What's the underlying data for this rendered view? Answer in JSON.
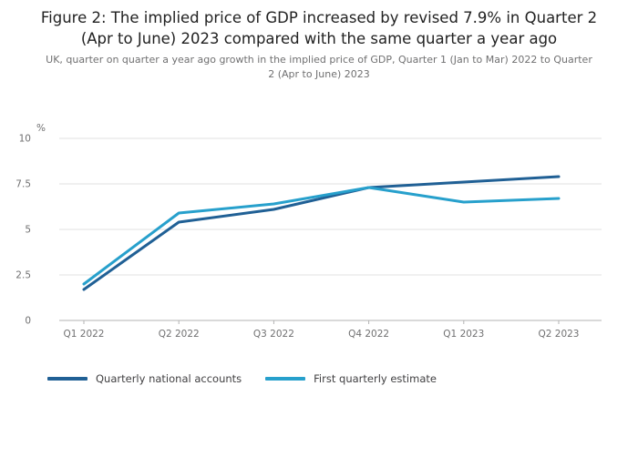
{
  "figure": {
    "title": "Figure 2: The implied price of GDP increased by revised 7.9% in Quarter 2 (Apr to June) 2023 compared with the same quarter a year ago",
    "subtitle": "UK, quarter on quarter a year ago growth in the implied price of GDP, Quarter 1 (Jan to Mar) 2022 to Quarter 2 (Apr to June) 2023"
  },
  "chart_data": {
    "type": "line",
    "categories": [
      "Q1 2022",
      "Q2 2022",
      "Q3 2022",
      "Q4 2022",
      "Q1 2023",
      "Q2 2023"
    ],
    "series": [
      {
        "name": "Quarterly national accounts",
        "color": "#206095",
        "values": [
          1.7,
          5.4,
          6.1,
          7.3,
          7.6,
          7.9
        ]
      },
      {
        "name": "First quarterly estimate",
        "color": "#27a0cc",
        "values": [
          2.0,
          5.9,
          6.4,
          7.3,
          6.5,
          6.7
        ]
      }
    ],
    "ylabel": "%",
    "xlabel": "",
    "yticks": [
      0,
      2.5,
      5,
      7.5,
      10
    ],
    "ylim": [
      0,
      10
    ],
    "grid": true,
    "legend_position": "bottom",
    "colors": {
      "gridline": "#e2e2e2",
      "axis": "#b3b3b3",
      "tick_text": "#707071"
    }
  }
}
